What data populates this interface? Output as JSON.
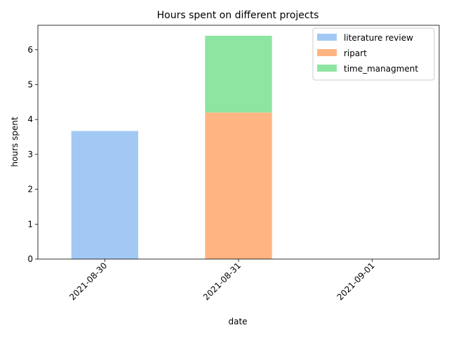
{
  "chart_data": {
    "type": "bar",
    "stacked": true,
    "title": "Hours spent on different projects",
    "xlabel": "date",
    "ylabel": "hours spent",
    "categories": [
      "2021-08-30",
      "2021-08-31",
      "2021-09-01"
    ],
    "series": [
      {
        "name": "literature review",
        "values": [
          3.67,
          0,
          0
        ],
        "color": "#a1c9f4"
      },
      {
        "name": "ripart",
        "values": [
          0,
          4.2,
          0
        ],
        "color": "#ffb482"
      },
      {
        "name": "time_managment",
        "values": [
          0,
          2.2,
          0
        ],
        "color": "#8de5a1"
      }
    ],
    "ylim": [
      0,
      6.7
    ],
    "yticks": [
      0,
      1,
      2,
      3,
      4,
      5,
      6
    ],
    "grid": false,
    "legend_position": "top-right"
  }
}
